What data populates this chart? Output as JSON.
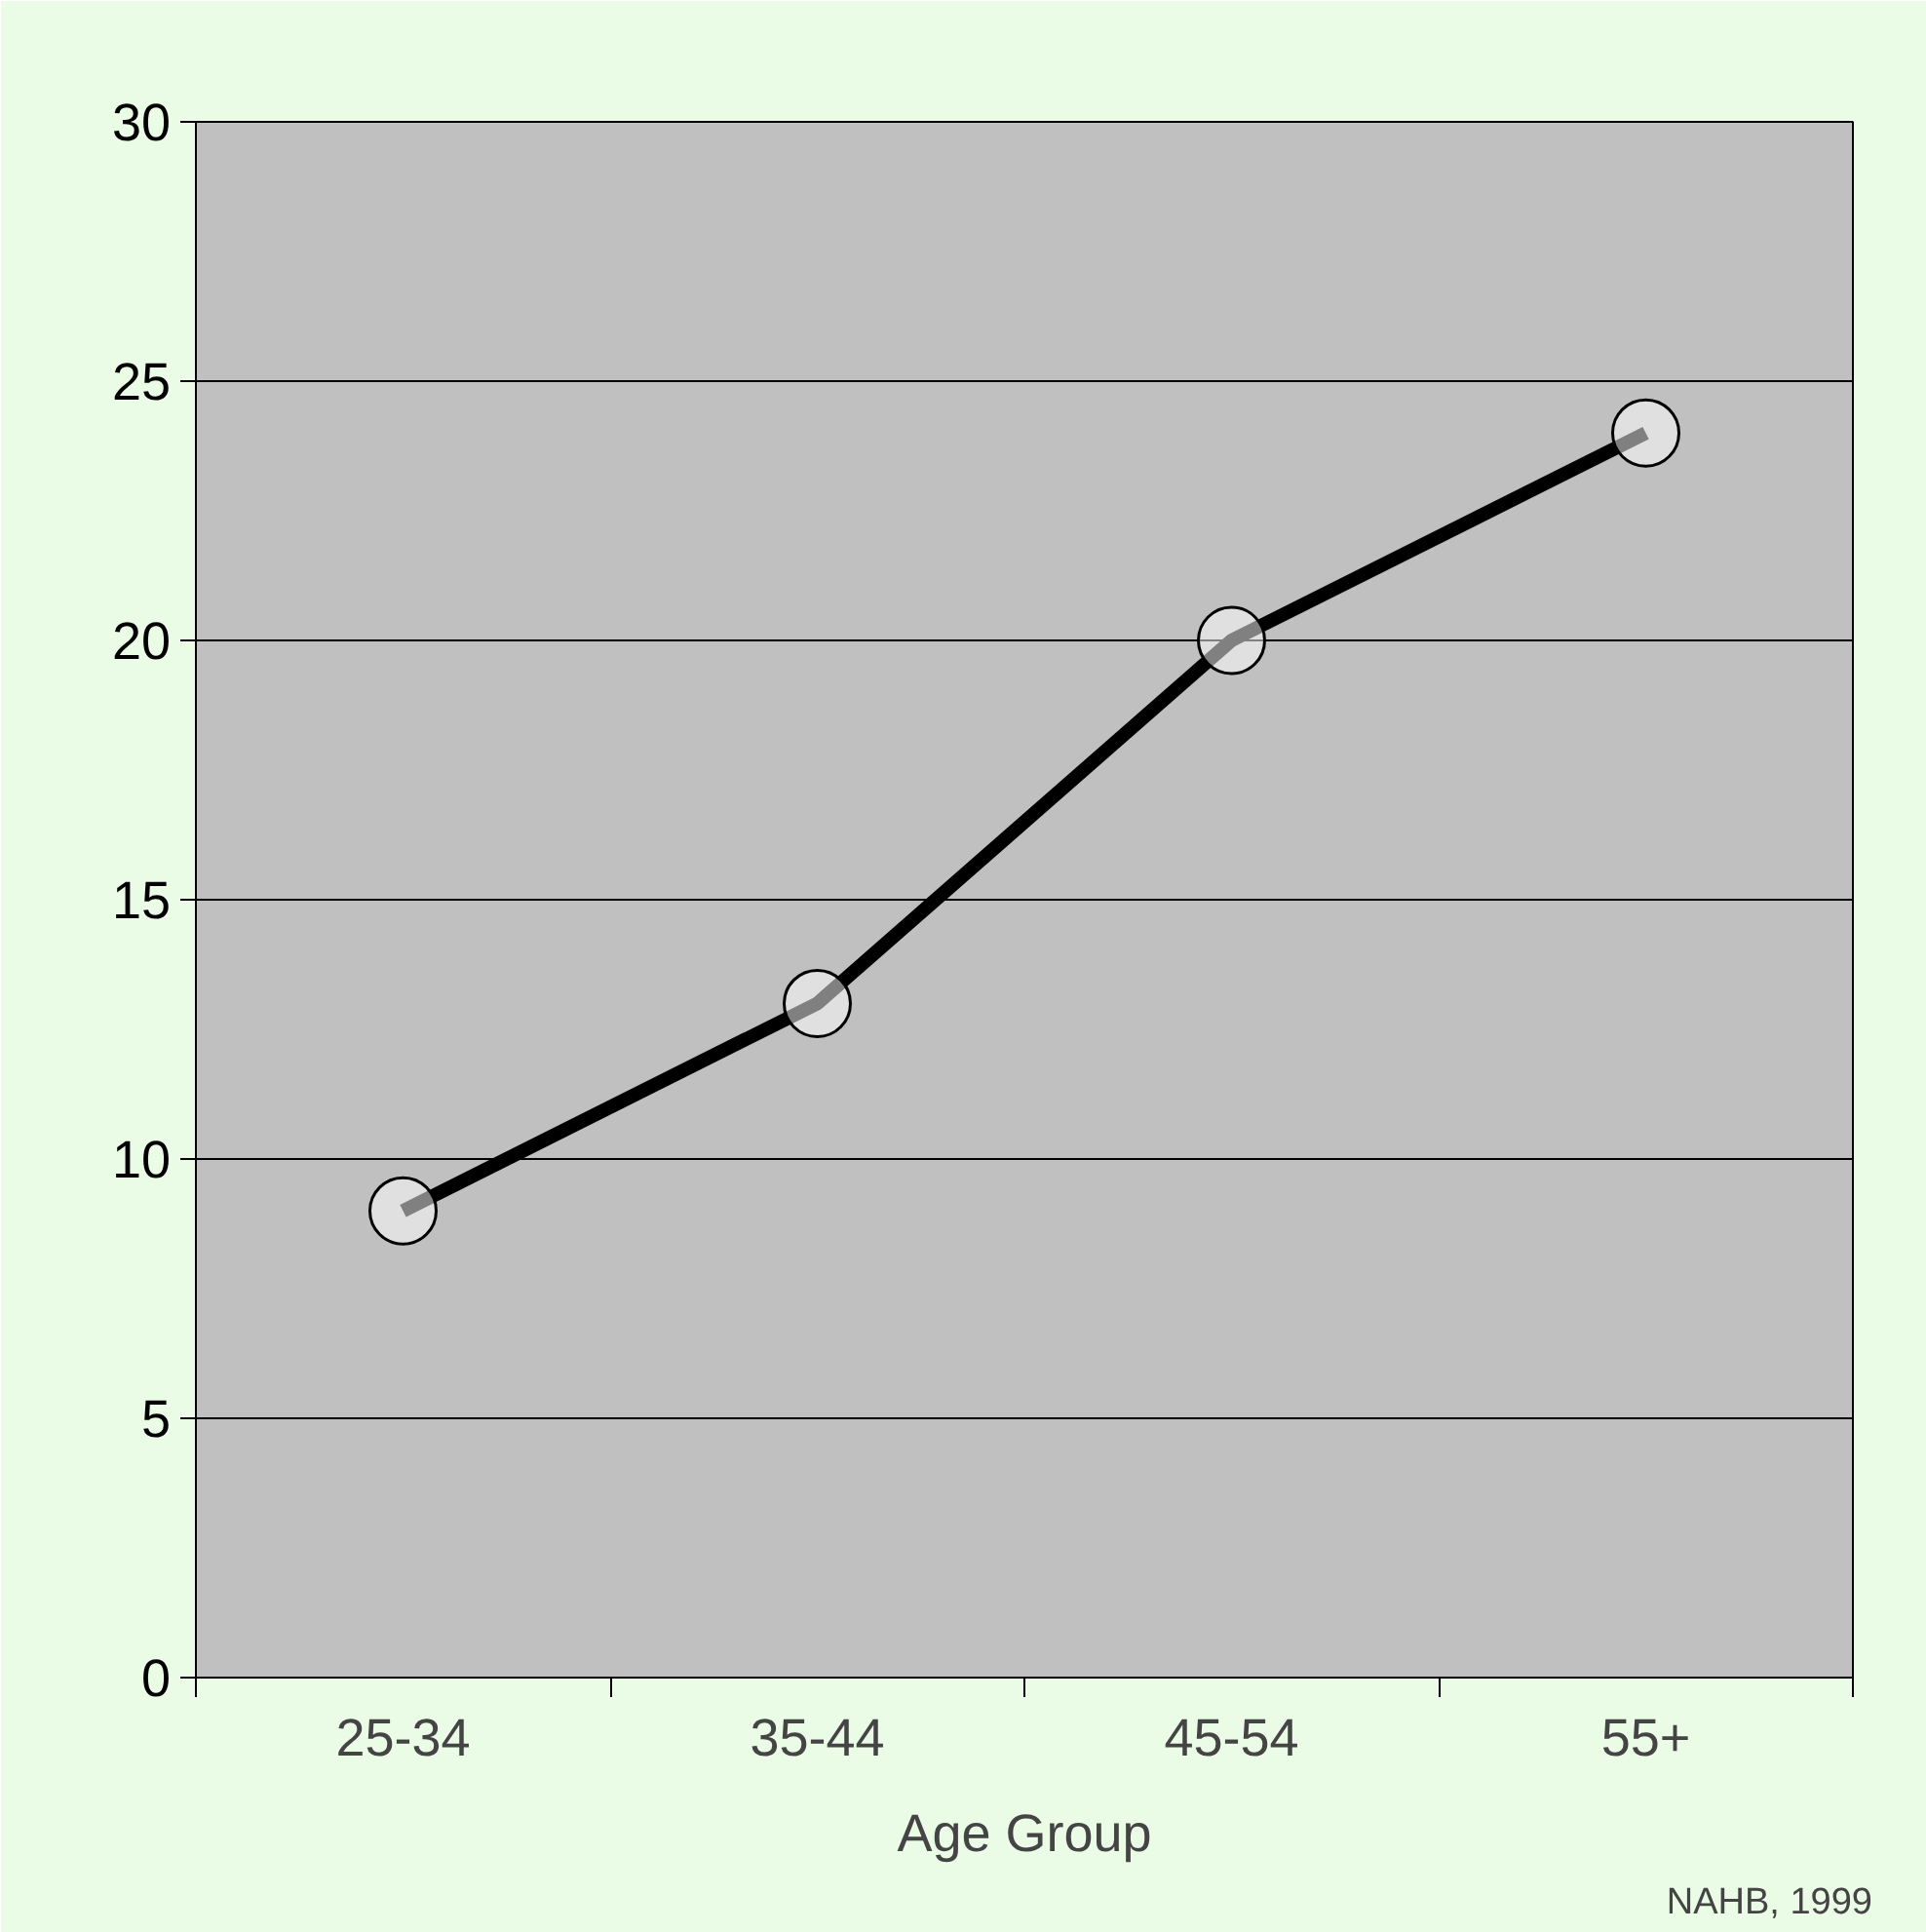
{
  "chart_data": {
    "type": "line",
    "xlabel": "Age Group",
    "categories": [
      "25-34",
      "35-44",
      "45-54",
      "55+"
    ],
    "series": [
      {
        "color": "#000000",
        "values": [
          9,
          13,
          20,
          24
        ]
      }
    ],
    "ylim": [
      0,
      30
    ],
    "yticks": [
      0,
      5,
      10,
      15,
      20,
      25,
      30
    ],
    "grid": "y",
    "marker": "circle",
    "line_style": "solid",
    "annotations": [
      "NAHB, 1999"
    ]
  }
}
